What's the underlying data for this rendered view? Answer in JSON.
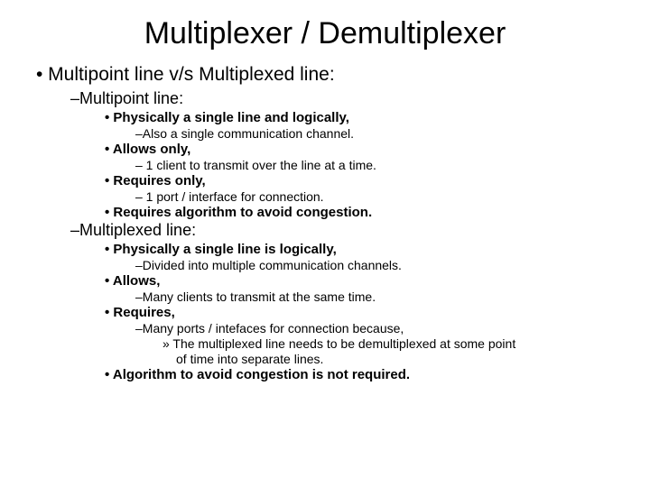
{
  "title": "Multiplexer / Demultiplexer",
  "b1": "• Multipoint line v/s Multiplexed line:",
  "b2a": "–Multipoint line:",
  "b3a": "• Physically a single line and logically,",
  "b4a": "–Also a single communication channel.",
  "b3b": "• Allows only,",
  "b4b": "– 1 client to transmit over the line at a time.",
  "b3c": "• Requires only,",
  "b4c": "– 1 port / interface for connection.",
  "b3d": "• Requires algorithm to avoid congestion.",
  "b2b": "–Multiplexed line:",
  "b3e": "• Physically a single line is logically,",
  "b4e": "–Divided into multiple communication channels.",
  "b3f": "• Allows,",
  "b4f": "–Many clients to transmit at the same time.",
  "b3g": "• Requires,",
  "b4g": "–Many ports / intefaces for connection because,",
  "b5a": "» The multiplexed line needs to be demultiplexed at some point",
  "b5b": "of time into separate lines.",
  "b3h": "• Algorithm to avoid congestion is not required."
}
